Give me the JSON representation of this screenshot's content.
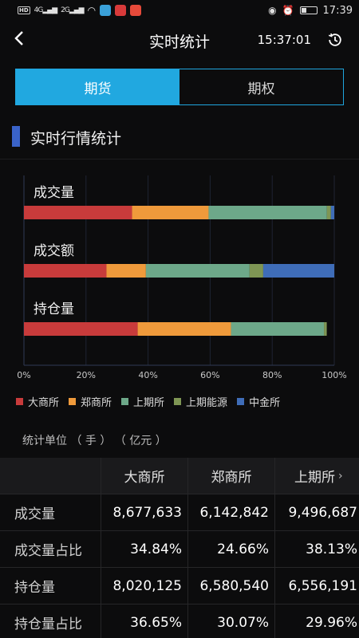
{
  "status_bar": {
    "left_tags": [
      "HD",
      "4G",
      "2G"
    ],
    "time": "17:39"
  },
  "header": {
    "title": "实时统计",
    "clock": "15:37:01"
  },
  "tabs": [
    {
      "label": "期货",
      "active": true
    },
    {
      "label": "期权",
      "active": false
    }
  ],
  "section": {
    "title": "实时行情统计"
  },
  "chart_data": {
    "type": "bar",
    "orientation": "horizontal-stacked-100",
    "categories": [
      "成交量",
      "成交额",
      "持仓量"
    ],
    "series": [
      {
        "name": "大商所",
        "color": "#c83b3b",
        "values": [
          34.84,
          26.6,
          36.65
        ]
      },
      {
        "name": "郑商所",
        "color": "#ef9a3b",
        "values": [
          24.66,
          12.7,
          30.07
        ]
      },
      {
        "name": "上期所",
        "color": "#6da889",
        "values": [
          38.13,
          33.4,
          29.96
        ]
      },
      {
        "name": "上期能源",
        "color": "#7f9654",
        "values": [
          1.3,
          4.4,
          0.9
        ]
      },
      {
        "name": "中金所",
        "color": "#3f6db8",
        "values": [
          1.07,
          22.9,
          0.0
        ]
      }
    ],
    "x_ticks": [
      "0%",
      "20%",
      "40%",
      "60%",
      "80%",
      "100%"
    ],
    "xlim": [
      0,
      100
    ],
    "legend_position": "bottom"
  },
  "unit_note": "统计单位 （ 手 ） （ 亿元 ）",
  "table": {
    "columns": [
      "大商所",
      "郑商所",
      "上期所"
    ],
    "more_indicator": "›",
    "rows": [
      {
        "label": "成交量",
        "values": [
          "8,677,633",
          "6,142,842",
          "9,496,687"
        ]
      },
      {
        "label": "成交量占比",
        "values": [
          "34.84%",
          "24.66%",
          "38.13%"
        ]
      },
      {
        "label": "持仓量",
        "values": [
          "8,020,125",
          "6,580,540",
          "6,556,191"
        ]
      },
      {
        "label": "持仓量占比",
        "values": [
          "36.65%",
          "30.07%",
          "29.96%"
        ]
      }
    ]
  }
}
